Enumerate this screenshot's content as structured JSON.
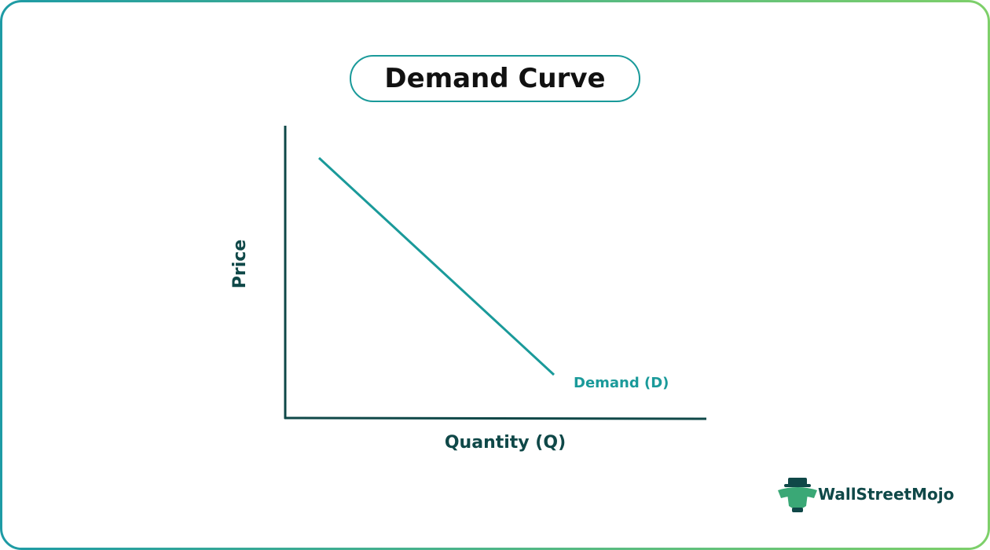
{
  "header": {
    "title": "Demand Curve"
  },
  "diagram": {
    "y_axis_label": "Price",
    "x_axis_label": "Quantity (Q)",
    "curve_label": "Demand (D)"
  },
  "footer": {
    "brand": "WallStreetMojo"
  }
}
